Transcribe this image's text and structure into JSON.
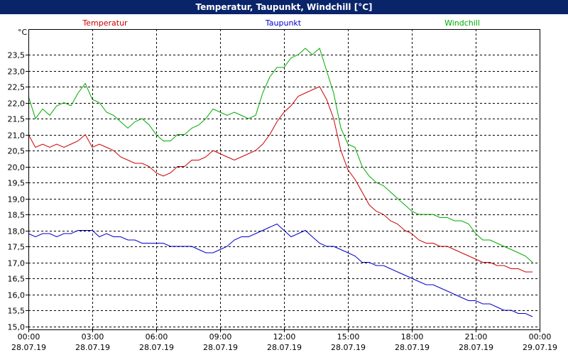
{
  "window": {
    "title": "Temperatur, Taupunkt, Windchill [°C]"
  },
  "chart_data": {
    "type": "line",
    "title": "Temperatur, Taupunkt, Windchill [°C]",
    "ylabel": "°C",
    "ylim": [
      14.9,
      24.3
    ],
    "yticks": [
      15.0,
      15.5,
      16.0,
      16.5,
      17.0,
      17.5,
      18.0,
      18.5,
      19.0,
      19.5,
      20.0,
      20.5,
      21.0,
      21.5,
      22.0,
      22.5,
      23.0,
      23.5
    ],
    "ytick_labels": [
      "15,0",
      "15,5",
      "16,0",
      "16,5",
      "17,0",
      "17,5",
      "18,0",
      "18,5",
      "19,0",
      "19,5",
      "20,0",
      "20,5",
      "21,0",
      "21,5",
      "22,0",
      "22,5",
      "23,0",
      "23,5"
    ],
    "xlim": [
      0,
      24
    ],
    "xticks": [
      0,
      3,
      6,
      9,
      12,
      15,
      18,
      21,
      24
    ],
    "xtick_times": [
      "00:00",
      "03:00",
      "06:00",
      "09:00",
      "12:00",
      "15:00",
      "18:00",
      "21:00",
      "00:00"
    ],
    "xtick_dates": [
      "28.07.19",
      "28.07.19",
      "28.07.19",
      "28.07.19",
      "28.07.19",
      "28.07.19",
      "28.07.19",
      "28.07.19",
      "29.07.19"
    ],
    "grid": true,
    "legend": "top",
    "series": [
      {
        "name": "Temperatur",
        "color": "#cc0000",
        "x": [
          0,
          0.33,
          0.67,
          1.0,
          1.33,
          1.67,
          2.0,
          2.33,
          2.67,
          3.0,
          3.33,
          3.67,
          4.0,
          4.33,
          4.67,
          5.0,
          5.33,
          5.67,
          6.0,
          6.33,
          6.67,
          7.0,
          7.33,
          7.67,
          8.0,
          8.33,
          8.67,
          9.0,
          9.33,
          9.67,
          10.0,
          10.33,
          10.67,
          11.0,
          11.33,
          11.67,
          12.0,
          12.33,
          12.67,
          13.0,
          13.33,
          13.67,
          14.0,
          14.33,
          14.67,
          15.0,
          15.33,
          15.67,
          16.0,
          16.33,
          16.67,
          17.0,
          17.33,
          17.67,
          18.0,
          18.33,
          18.67,
          19.0,
          19.33,
          19.67,
          20.0,
          20.33,
          20.67,
          21.0,
          21.33,
          21.67,
          22.0,
          22.33,
          22.67,
          23.0,
          23.33,
          23.67
        ],
        "values": [
          21.0,
          20.6,
          20.7,
          20.6,
          20.7,
          20.6,
          20.7,
          20.8,
          21.0,
          20.6,
          20.7,
          20.6,
          20.5,
          20.3,
          20.2,
          20.1,
          20.1,
          20.0,
          19.8,
          19.7,
          19.8,
          20.0,
          20.0,
          20.2,
          20.2,
          20.3,
          20.5,
          20.4,
          20.3,
          20.2,
          20.3,
          20.4,
          20.5,
          20.7,
          21.0,
          21.4,
          21.7,
          21.9,
          22.2,
          22.3,
          22.4,
          22.5,
          22.1,
          21.5,
          20.5,
          19.9,
          19.6,
          19.2,
          18.8,
          18.6,
          18.5,
          18.3,
          18.2,
          18.0,
          17.9,
          17.7,
          17.6,
          17.6,
          17.5,
          17.5,
          17.4,
          17.3,
          17.2,
          17.1,
          17.0,
          17.0,
          16.9,
          16.9,
          16.8,
          16.8,
          16.7,
          16.7
        ]
      },
      {
        "name": "Taupunkt",
        "color": "#0000cc",
        "x": [
          0,
          0.33,
          0.67,
          1.0,
          1.33,
          1.67,
          2.0,
          2.33,
          2.67,
          3.0,
          3.33,
          3.67,
          4.0,
          4.33,
          4.67,
          5.0,
          5.33,
          5.67,
          6.0,
          6.33,
          6.67,
          7.0,
          7.33,
          7.67,
          8.0,
          8.33,
          8.67,
          9.0,
          9.33,
          9.67,
          10.0,
          10.33,
          10.67,
          11.0,
          11.33,
          11.67,
          12.0,
          12.33,
          12.67,
          13.0,
          13.33,
          13.67,
          14.0,
          14.33,
          14.67,
          15.0,
          15.33,
          15.67,
          16.0,
          16.33,
          16.67,
          17.0,
          17.33,
          17.67,
          18.0,
          18.33,
          18.67,
          19.0,
          19.33,
          19.67,
          20.0,
          20.33,
          20.67,
          21.0,
          21.33,
          21.67,
          22.0,
          22.33,
          22.67,
          23.0,
          23.33,
          23.67
        ],
        "values": [
          17.9,
          17.8,
          17.9,
          17.9,
          17.8,
          17.9,
          17.9,
          18.0,
          18.0,
          18.0,
          17.8,
          17.9,
          17.8,
          17.8,
          17.7,
          17.7,
          17.6,
          17.6,
          17.6,
          17.6,
          17.5,
          17.5,
          17.5,
          17.5,
          17.4,
          17.3,
          17.3,
          17.4,
          17.5,
          17.7,
          17.8,
          17.8,
          17.9,
          18.0,
          18.1,
          18.2,
          18.0,
          17.8,
          17.9,
          18.0,
          17.8,
          17.6,
          17.5,
          17.5,
          17.4,
          17.3,
          17.2,
          17.0,
          17.0,
          16.9,
          16.9,
          16.8,
          16.7,
          16.6,
          16.5,
          16.4,
          16.3,
          16.3,
          16.2,
          16.1,
          16.0,
          15.9,
          15.8,
          15.8,
          15.7,
          15.7,
          15.6,
          15.5,
          15.5,
          15.4,
          15.4,
          15.3
        ]
      },
      {
        "name": "Windchill",
        "color": "#00aa00",
        "x": [
          0,
          0.33,
          0.67,
          1.0,
          1.33,
          1.67,
          2.0,
          2.33,
          2.67,
          3.0,
          3.33,
          3.67,
          4.0,
          4.33,
          4.67,
          5.0,
          5.33,
          5.67,
          6.0,
          6.33,
          6.67,
          7.0,
          7.33,
          7.67,
          8.0,
          8.33,
          8.67,
          9.0,
          9.33,
          9.67,
          10.0,
          10.33,
          10.67,
          11.0,
          11.33,
          11.67,
          12.0,
          12.33,
          12.67,
          13.0,
          13.33,
          13.67,
          14.0,
          14.33,
          14.67,
          15.0,
          15.33,
          15.67,
          16.0,
          16.33,
          16.67,
          17.0,
          17.33,
          17.67,
          18.0,
          18.33,
          18.67,
          19.0,
          19.33,
          19.67,
          20.0,
          20.33,
          20.67,
          21.0,
          21.33,
          21.67,
          22.0,
          22.33,
          22.67,
          23.0,
          23.33,
          23.67
        ],
        "values": [
          22.2,
          21.5,
          21.8,
          21.6,
          21.9,
          22.0,
          21.9,
          22.3,
          22.6,
          22.1,
          22.0,
          21.7,
          21.6,
          21.4,
          21.2,
          21.4,
          21.5,
          21.3,
          21.0,
          20.8,
          20.8,
          21.0,
          21.0,
          21.2,
          21.3,
          21.5,
          21.8,
          21.7,
          21.6,
          21.7,
          21.6,
          21.5,
          21.6,
          22.3,
          22.8,
          23.1,
          23.1,
          23.4,
          23.5,
          23.7,
          23.5,
          23.7,
          23.0,
          22.3,
          21.2,
          20.7,
          20.6,
          20.0,
          19.7,
          19.5,
          19.4,
          19.2,
          19.0,
          18.8,
          18.6,
          18.5,
          18.5,
          18.5,
          18.4,
          18.4,
          18.3,
          18.3,
          18.2,
          17.9,
          17.7,
          17.7,
          17.6,
          17.5,
          17.4,
          17.3,
          17.2,
          17.0
        ]
      }
    ]
  }
}
